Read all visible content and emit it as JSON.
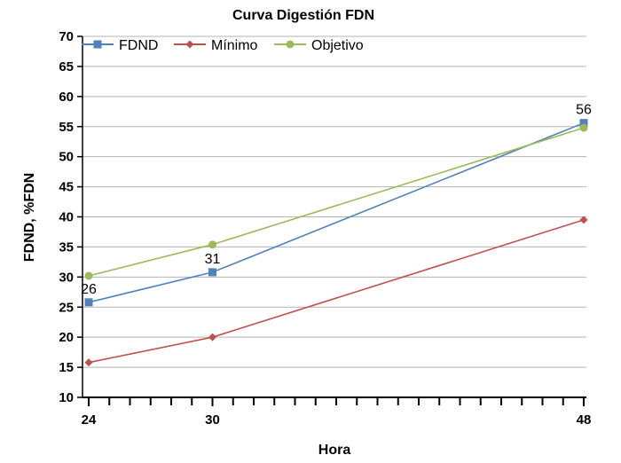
{
  "chart_data": {
    "type": "line",
    "title": "Curva Digestión FDN",
    "xlabel": "Hora",
    "ylabel": "FDND, %FDN",
    "x": [
      24,
      30,
      48
    ],
    "xlim": [
      24,
      48
    ],
    "ylim": [
      10,
      70
    ],
    "y_ticks": [
      10,
      15,
      20,
      25,
      30,
      35,
      40,
      45,
      50,
      55,
      60,
      65,
      70
    ],
    "x_tick_labels": [
      "24",
      "30",
      "48"
    ],
    "grid": "horizontal",
    "legend_position": "top-left",
    "series": [
      {
        "name": "FDND",
        "values": [
          25.8,
          30.8,
          55.6
        ],
        "color": "#4F81BD",
        "marker": "square",
        "data_labels": [
          "26",
          "31",
          "56"
        ]
      },
      {
        "name": "Mínimo",
        "values": [
          15.8,
          20.0,
          39.5
        ],
        "color": "#C0504D",
        "marker": "diamond"
      },
      {
        "name": "Objetivo",
        "values": [
          30.2,
          35.4,
          54.8
        ],
        "color": "#9BBB59",
        "marker": "circle"
      }
    ]
  }
}
